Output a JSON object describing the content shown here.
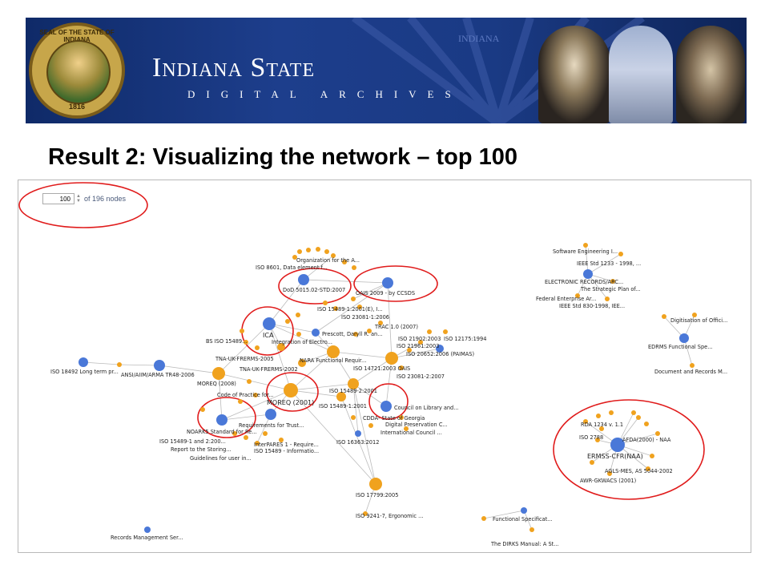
{
  "banner": {
    "title": "Indiana State",
    "subtitle": "DIGITAL ARCHIVES",
    "seal_text": "SEAL OF THE STATE OF INDIANA",
    "seal_year": "1816",
    "watermark": "INDIANA"
  },
  "slide": {
    "title": "Result 2: Visualizing the network – top 100"
  },
  "counter": {
    "value": "100",
    "suffix": "of 196 nodes"
  },
  "colors": {
    "blue_node": "#4a78d8",
    "orange_node": "#f0a21e",
    "edge": "#bbbbbb",
    "annotation": "#e01b1b"
  },
  "graph": {
    "labels": {
      "org_library": "Organization for the A...",
      "iso8601": "ISO 8601, Data element f...",
      "dod5015": "DoD 5015.02-STD:2007",
      "oais2009": "OAIS 2009 - by CCSDS",
      "iso15489_2001e": "ISO 15489-1:2001(E), I...",
      "iso23081_2006": "ISO 23081-1:2006",
      "ica": "ICA",
      "bs15489": "BS ISO 15489...",
      "integration": "Integration of Electro...",
      "prescott": "Prescott, Daryll R. an...",
      "trac": "TRAC 1.0 (2007)",
      "iso21902": "ISO 21902:2003",
      "iso12175": "ISO 12175:1994",
      "iso21961": "ISO 21961:2003",
      "iso20652": "ISO 20652:2006 (PAIMAS)",
      "tna2005": "TNA-UK-FRERMS-2005",
      "tna2002": "TNA-UK-FRERMS-2002",
      "nara": "NARA Functional Requir...",
      "iso14721": "ISO 14721:2003 OAIS",
      "iso23081_2007": "ISO 23081-2:2007",
      "iso18492": "ISO 18492 Long term pr...",
      "ansi": "ANSI/AIIM/ARMA TR48-2006",
      "moreq2008": "MOREQ (2008)",
      "code_practice": "Code of Practice for...",
      "moreq2001": "MOREQ (2001)",
      "iso15489_2_2001": "ISO 15489-2:2001",
      "iso15489_1_2001": "ISO 15489-1:2001",
      "council": "Council on Library and...",
      "cdda": "CDDA- State of Georgia",
      "digital_pres": "Digital Preservation C...",
      "intl_council": "International Council ...",
      "noark": "NOARK5 Standard for Re...",
      "req_trust": "Requirements for Trust...",
      "iso15489_2_2": "ISO 15489-1 and 2:200...",
      "report_storing": "Report to the Storing...",
      "interpares": "InterPARES 1 - Require...",
      "iso15489_info": "ISO 15489 - Informatio...",
      "guidelines_user": "Guidelines for user in...",
      "iso16363": "ISO 16363:2012",
      "iso17799": "ISO 17799:2005",
      "iso9241": "ISO 9241-7, Ergonomic ...",
      "records_mgmt": "Records Management Ser...",
      "software_eng": "Software Engineering I...",
      "ieee1233": "IEEE Std 1233 - 1998, ...",
      "electronic_records": "ELECTRONIC RECORDS/ARC...",
      "strategic_plan": "The Strategic Plan of...",
      "fea": "Federal Enterprise Ar...",
      "ieee830": "IEEE Std 830-1998, IEE...",
      "digitisation": "Digitisation of Offici...",
      "edrms": "EDRMS Functional Spe...",
      "document_records": "Document and Records M...",
      "rda": "RDA 1234 v. 1.1",
      "iso2788": "ISO 2788",
      "afda": "AFDA(2000) - NAA",
      "ermss": "ERMSS-CFR(NAA)",
      "agls": "AGLS-MES, AS 5044-2002",
      "awr": "AWR-GKWACS (2001)",
      "functional_spec": "Functional Specificat...",
      "dirks": "The DIRKS Manual: A St..."
    }
  }
}
